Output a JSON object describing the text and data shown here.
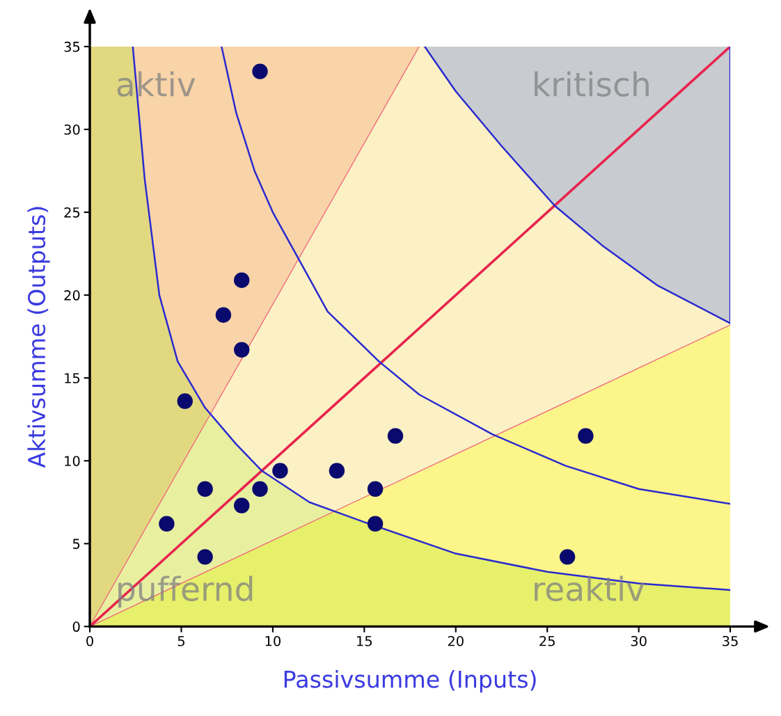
{
  "chart_data": {
    "type": "scatter",
    "xlabel": "Passivsumme (Inputs)",
    "ylabel": "Aktivsumme (Outputs)",
    "xlim": [
      0,
      35
    ],
    "ylim": [
      0,
      35
    ],
    "xticks": [
      0,
      5,
      10,
      15,
      20,
      25,
      30,
      35
    ],
    "yticks": [
      0,
      5,
      10,
      15,
      20,
      25,
      30,
      35
    ],
    "grid": false,
    "series": [
      {
        "type": "line",
        "color": "#f0607a",
        "marker": "none",
        "x": [
          0,
          18
        ],
        "values": [
          0,
          35
        ]
      },
      {
        "type": "line",
        "color": "#f0607a",
        "marker": "none",
        "x": [
          0,
          35
        ],
        "values": [
          0,
          18.2
        ]
      },
      {
        "type": "line",
        "color": "#e8244e",
        "marker": "none",
        "x": [
          0,
          35
        ],
        "values": [
          0,
          35
        ]
      },
      {
        "type": "line",
        "color": "#2a2ad0",
        "marker": "none",
        "x": [
          2.35,
          3,
          3.8,
          4.8,
          6.3,
          8,
          9.4,
          12,
          15,
          20,
          25,
          30,
          35
        ],
        "values": [
          35,
          27,
          20,
          16,
          13.2,
          11,
          9.4,
          7.5,
          6.3,
          4.4,
          3.3,
          2.6,
          2.2
        ]
      },
      {
        "type": "line",
        "color": "#2a2ad0",
        "marker": "none",
        "x": [
          7.2,
          8,
          9,
          10,
          11.5,
          13,
          15.8,
          18,
          22,
          26,
          30,
          35
        ],
        "values": [
          35,
          31,
          27.5,
          25,
          22,
          19,
          16,
          14,
          11.6,
          9.7,
          8.3,
          7.4
        ]
      },
      {
        "type": "line",
        "color": "#2a2ad0",
        "marker": "none",
        "x": [
          18.3,
          20,
          22.5,
          25.4,
          28,
          31,
          35,
          35
        ],
        "values": [
          35,
          32.3,
          29,
          25.4,
          23,
          20.6,
          18.3,
          35
        ]
      },
      {
        "color": "#0a0a6e",
        "marker": "circle",
        "x": [
          9.3,
          8.3,
          7.3,
          8.3,
          5.2,
          16.7,
          27.1,
          10.4,
          13.5,
          6.3,
          9.3,
          15.6,
          8.3,
          4.2,
          15.6,
          6.3,
          26.1
        ],
        "values": [
          33.5,
          20.9,
          18.8,
          16.7,
          13.6,
          11.5,
          11.5,
          9.4,
          9.4,
          8.3,
          8.3,
          8.3,
          7.3,
          6.2,
          6.2,
          4.2,
          4.2
        ]
      }
    ],
    "annotations": [
      "aktiv",
      "kritisch",
      "puffernd",
      "reaktiv"
    ]
  }
}
